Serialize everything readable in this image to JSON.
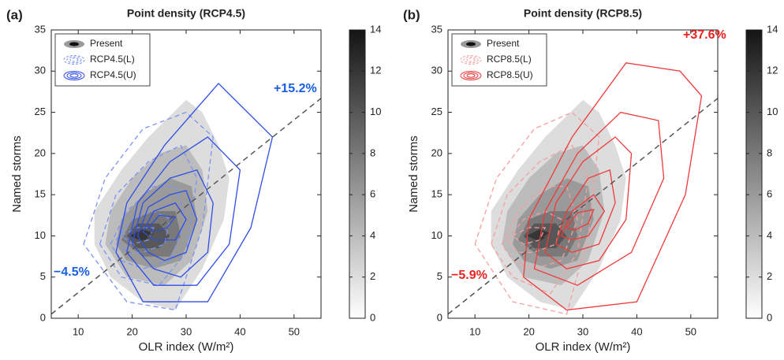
{
  "chart_data": [
    {
      "type": "contour",
      "panel_label": "(a)",
      "title": "Point density (RCP4.5)",
      "xlabel": "OLR index (W/m²)",
      "ylabel": "Named storms",
      "xlim": [
        5,
        55
      ],
      "ylim": [
        0,
        35
      ],
      "xticks": [
        10,
        20,
        30,
        40,
        50
      ],
      "yticks": [
        0,
        5,
        10,
        15,
        20,
        25,
        30,
        35
      ],
      "colorbar": {
        "lim": [
          0,
          14
        ],
        "ticks": [
          0,
          2,
          4,
          6,
          8,
          10,
          12,
          14
        ]
      },
      "legend": "upper left",
      "reference_line": {
        "x": [
          5,
          55
        ],
        "y": [
          0.5,
          26.7
        ],
        "color": "#555555"
      },
      "series": [
        {
          "name": "Present",
          "style": "filled",
          "color": "#000000",
          "contours": [
            {
              "level": 2,
              "x": [
                13,
                13,
                18,
                23,
                30,
                33,
                36,
                38,
                37,
                33,
                28,
                22,
                16
              ],
              "y": [
                9,
                13,
                18,
                22,
                26.5,
                25,
                21,
                17,
                12,
                6,
                1,
                2,
                5
              ]
            },
            {
              "level": 4,
              "x": [
                15,
                16,
                20,
                25,
                30,
                33,
                34,
                31,
                26,
                19
              ],
              "y": [
                9,
                13,
                17,
                20,
                21,
                18,
                13,
                7,
                4,
                5
              ]
            },
            {
              "level": 6,
              "x": [
                17,
                18,
                22,
                27,
                31,
                32,
                29,
                24,
                19
              ],
              "y": [
                9,
                12,
                15,
                17,
                16,
                12,
                7,
                6,
                7
              ]
            },
            {
              "level": 8,
              "x": [
                18,
                20,
                24,
                28,
                29,
                27,
                22
              ],
              "y": [
                9.5,
                12,
                13,
                13,
                10,
                7.5,
                7.5
              ]
            },
            {
              "level": 10,
              "x": [
                19,
                21,
                25,
                27,
                25,
                21
              ],
              "y": [
                10,
                11.5,
                11.5,
                10,
                8.5,
                8.5
              ]
            },
            {
              "level": 12,
              "x": [
                19.5,
                22,
                24,
                22
              ],
              "y": [
                10,
                10.8,
                10.3,
                9.3
              ]
            }
          ]
        },
        {
          "name": "RCP4.5(L)",
          "style": "dashed",
          "color": "#7d93f2",
          "contours": [
            {
              "level": 2,
              "x": [
                11,
                15,
                22,
                30,
                35,
                33,
                28,
                19
              ],
              "y": [
                9,
                17,
                23,
                25,
                22,
                11,
                1,
                2
              ]
            },
            {
              "level": 4,
              "x": [
                14,
                17,
                23,
                29,
                32,
                30,
                25,
                18
              ],
              "y": [
                9,
                15,
                19,
                21,
                17,
                8,
                4,
                5
              ]
            },
            {
              "level": 6,
              "x": [
                16,
                19,
                24,
                28,
                30,
                27,
                22,
                18
              ],
              "y": [
                9,
                13,
                16,
                16,
                12,
                7,
                6,
                7
              ]
            },
            {
              "level": 8,
              "x": [
                17,
                20,
                24,
                27,
                26,
                22,
                19
              ],
              "y": [
                9.5,
                12,
                13,
                12,
                9,
                8,
                8
              ]
            },
            {
              "level": 10,
              "x": [
                18,
                21,
                24,
                23,
                20
              ],
              "y": [
                10,
                11,
                11,
                9.5,
                9
              ]
            }
          ]
        },
        {
          "name": "RCP4.5(U)",
          "style": "solid",
          "color": "#2f4ee6",
          "contours": [
            {
              "level": 2,
              "x": [
                17,
                19,
                26,
                36,
                46,
                42,
                34,
                22
              ],
              "y": [
                8,
                14,
                21,
                28.5,
                22,
                11,
                2,
                2
              ]
            },
            {
              "level": 4,
              "x": [
                19,
                21,
                27,
                34,
                40,
                38,
                32,
                24
              ],
              "y": [
                8,
                14,
                19,
                22,
                18,
                9,
                4,
                4
              ]
            },
            {
              "level": 6,
              "x": [
                20,
                22,
                27,
                32,
                35,
                34,
                29,
                24
              ],
              "y": [
                9,
                14,
                17,
                18,
                14,
                8,
                5,
                6
              ]
            },
            {
              "level": 8,
              "x": [
                21,
                23,
                27,
                30,
                32,
                30,
                26,
                23
              ],
              "y": [
                10,
                13.5,
                15,
                15.5,
                12,
                8,
                7,
                8
              ]
            },
            {
              "level": 10,
              "x": [
                22,
                24,
                28,
                30,
                28,
                24
              ],
              "y": [
                10.5,
                13,
                14,
                12,
                9.5,
                9.5
              ]
            },
            {
              "level": 12,
              "x": [
                23,
                25,
                28,
                26.5,
                24
              ],
              "y": [
                11,
                12.5,
                12.3,
                11,
                10.5
              ]
            }
          ]
        }
      ],
      "annotations": [
        {
          "text": "+15.2%",
          "color": "#1a5fe0"
        },
        {
          "text": "−4.5%",
          "color": "#1a5fe0"
        }
      ]
    },
    {
      "type": "contour",
      "panel_label": "(b)",
      "title": "Point density (RCP8.5)",
      "xlabel": "OLR index (W/m²)",
      "ylabel": "Named storms",
      "xlim": [
        5,
        55
      ],
      "ylim": [
        0,
        35
      ],
      "xticks": [
        10,
        20,
        30,
        40,
        50
      ],
      "yticks": [
        0,
        5,
        10,
        15,
        20,
        25,
        30,
        35
      ],
      "colorbar": {
        "lim": [
          0,
          14
        ],
        "ticks": [
          0,
          2,
          4,
          6,
          8,
          10,
          12,
          14
        ]
      },
      "legend": "upper left",
      "reference_line": {
        "x": [
          5,
          55
        ],
        "y": [
          0.5,
          26.7
        ],
        "color": "#555555"
      },
      "series": [
        {
          "name": "Present",
          "style": "filled",
          "color": "#000000",
          "contours": [
            {
              "level": 2,
              "x": [
                13,
                13,
                18,
                23,
                30,
                33,
                36,
                38,
                37,
                33,
                28,
                22,
                16
              ],
              "y": [
                9,
                13,
                18,
                22,
                26.5,
                25,
                21,
                17,
                12,
                6,
                1,
                2,
                5
              ]
            },
            {
              "level": 4,
              "x": [
                15,
                16,
                20,
                25,
                30,
                33,
                34,
                31,
                26,
                19
              ],
              "y": [
                9,
                13,
                17,
                20,
                21,
                18,
                13,
                7,
                4,
                5
              ]
            },
            {
              "level": 6,
              "x": [
                17,
                18,
                22,
                27,
                31,
                32,
                29,
                24,
                19
              ],
              "y": [
                9,
                12,
                15,
                17,
                16,
                12,
                7,
                6,
                7
              ]
            },
            {
              "level": 8,
              "x": [
                18,
                20,
                24,
                28,
                29,
                27,
                22
              ],
              "y": [
                9.5,
                12,
                13,
                13,
                10,
                7.5,
                7.5
              ]
            },
            {
              "level": 10,
              "x": [
                19,
                21,
                25,
                27,
                25,
                21
              ],
              "y": [
                10,
                11.5,
                11.5,
                10,
                8.5,
                8.5
              ]
            },
            {
              "level": 12,
              "x": [
                19.5,
                22,
                24,
                22
              ],
              "y": [
                10,
                10.8,
                10.3,
                9.3
              ]
            }
          ]
        },
        {
          "name": "RCP8.5(L)",
          "style": "dashed",
          "color": "#f4a0a0",
          "contours": [
            {
              "level": 2,
              "x": [
                10,
                14,
                21,
                28,
                33,
                31,
                27,
                17
              ],
              "y": [
                9,
                17,
                23,
                25,
                22,
                10,
                0.5,
                2
              ]
            },
            {
              "level": 4,
              "x": [
                13,
                16,
                22,
                28,
                31,
                29,
                24,
                17
              ],
              "y": [
                9,
                15,
                19,
                21,
                17,
                8,
                3,
                5
              ]
            },
            {
              "level": 6,
              "x": [
                15,
                18,
                23,
                27,
                29,
                26,
                21,
                17
              ],
              "y": [
                9,
                13,
                16,
                16,
                12,
                7,
                6,
                7
              ]
            },
            {
              "level": 8,
              "x": [
                16,
                19,
                23,
                26,
                25,
                21,
                18
              ],
              "y": [
                9.5,
                12,
                13,
                12,
                9,
                8,
                8
              ]
            },
            {
              "level": 10,
              "x": [
                17,
                20,
                23,
                22,
                19
              ],
              "y": [
                10,
                11,
                11,
                9.5,
                9
              ]
            }
          ]
        },
        {
          "name": "RCP8.5(U)",
          "style": "solid",
          "color": "#ee3a3a",
          "contours": [
            {
              "level": 2,
              "x": [
                19,
                20,
                28,
                38,
                48,
                52,
                49,
                40,
                27
              ],
              "y": [
                5,
                12,
                22,
                31,
                30,
                27,
                15,
                2,
                1
              ]
            },
            {
              "level": 4,
              "x": [
                21,
                23,
                29,
                37,
                44,
                45,
                39,
                29
              ],
              "y": [
                6,
                13,
                20,
                25,
                24,
                17,
                8,
                4
              ]
            },
            {
              "level": 6,
              "x": [
                23,
                25,
                30,
                36,
                39,
                38,
                33,
                27
              ],
              "y": [
                8,
                14,
                19,
                22,
                20,
                12,
                7,
                6
              ]
            },
            {
              "level": 8,
              "x": [
                25,
                27,
                31,
                35,
                36,
                33,
                28
              ],
              "y": [
                9,
                13,
                17,
                18,
                14,
                9,
                8
              ]
            },
            {
              "level": 10,
              "x": [
                26,
                28,
                32,
                34,
                31,
                28
              ],
              "y": [
                10,
                13,
                15,
                13,
                10,
                9.5
              ]
            },
            {
              "level": 12,
              "x": [
                27,
                29,
                32,
                31,
                28.5
              ],
              "y": [
                11,
                12.8,
                13.2,
                11.5,
                10.7
              ]
            }
          ]
        }
      ],
      "annotations": [
        {
          "text": "+37.6%",
          "color": "#e8231f"
        },
        {
          "text": "−5.9%",
          "color": "#e8231f"
        }
      ]
    }
  ]
}
